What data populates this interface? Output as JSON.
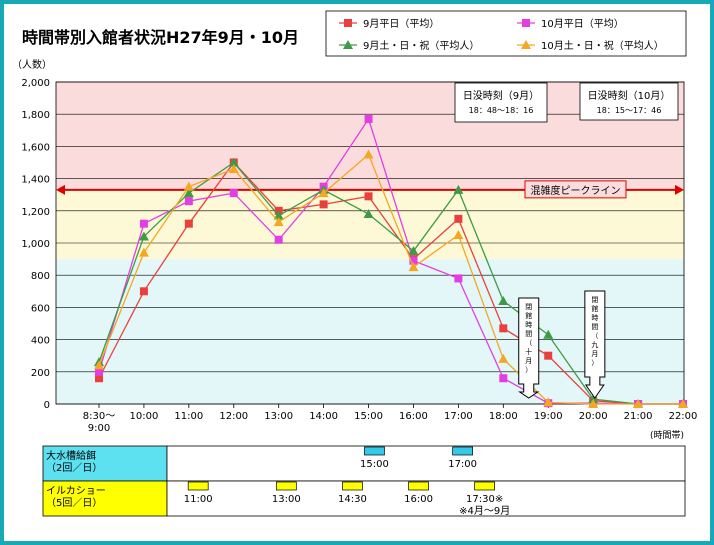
{
  "chart_data": {
    "type": "line",
    "title": "時間帯別入館者状況H27年9月・10月",
    "ylabel": "（人数）",
    "xlabel": "(時間帯)",
    "ylim": [
      0,
      2000
    ],
    "yticks": [
      "0",
      "200",
      "400",
      "600",
      "800",
      "1,000",
      "1,200",
      "1,400",
      "1,600",
      "1,800",
      "2,000"
    ],
    "categories": [
      "8:30～\n9:00",
      "10:00",
      "11:00",
      "12:00",
      "13:00",
      "14:00",
      "15:00",
      "16:00",
      "17:00",
      "18:00",
      "19:00",
      "20:00",
      "21:00",
      "22:00"
    ],
    "series": [
      {
        "name": "9月平日（平均）",
        "color": "#e8413d",
        "marker": "square",
        "values": [
          160,
          700,
          1120,
          1500,
          1200,
          1240,
          1290,
          900,
          1150,
          470,
          300,
          20,
          0,
          0
        ]
      },
      {
        "name": "10月平日（平均）",
        "color": "#e33ee3",
        "marker": "square",
        "values": [
          200,
          1120,
          1260,
          1310,
          1020,
          1350,
          1770,
          890,
          780,
          160,
          5,
          5,
          0,
          0
        ]
      },
      {
        "name": "9月土・日・祝（平均人）",
        "color": "#3f9a45",
        "marker": "triangle",
        "values": [
          260,
          1040,
          1310,
          1500,
          1170,
          1330,
          1180,
          950,
          1330,
          640,
          430,
          30,
          0,
          0
        ]
      },
      {
        "name": "10月土・日・祝（平均人）",
        "color": "#f5a623",
        "marker": "triangle",
        "values": [
          240,
          940,
          1350,
          1460,
          1130,
          1310,
          1550,
          850,
          1050,
          280,
          10,
          0,
          0,
          0
        ]
      }
    ],
    "bands": [
      {
        "from": 1330,
        "to": 2000,
        "color": "#fbdcdc"
      },
      {
        "from": 900,
        "to": 1330,
        "color": "#fdf9d6"
      },
      {
        "from": 0,
        "to": 900,
        "color": "#e3f7f9"
      }
    ],
    "peak_line": {
      "value": 1330,
      "label": "混雑度ピークライン"
    },
    "sunset_sep": {
      "label": "日没時刻（9月）",
      "time": "18：48～18：16"
    },
    "sunset_oct": {
      "label": "日没時刻（10月）",
      "time": "18：15～17：46"
    },
    "closing_oct": {
      "label": "閉館時間（十月）",
      "chars": [
        "閉",
        "館",
        "時",
        "間",
        "（",
        "十",
        "月",
        "）"
      ],
      "at": 18.5
    },
    "closing_sep": {
      "label": "閉館時間（九月）",
      "chars": [
        "閉",
        "館",
        "時",
        "間",
        "（",
        "九",
        "月",
        "）"
      ],
      "at": 20
    }
  },
  "schedule": {
    "rows": [
      {
        "label_lines": [
          "大水槽給餌",
          "（2回／日）"
        ],
        "color": "#33c9ea",
        "header_bg": "#5de0f0",
        "events": [
          {
            "time": "15:00",
            "at": 15
          },
          {
            "time": "17:00",
            "at": 17
          }
        ]
      },
      {
        "label_lines": [
          "イルカショー",
          "（5回／日）"
        ],
        "color": "#ffff00",
        "header_bg": "#ffff00",
        "events": [
          {
            "time": "11:00",
            "at": 11
          },
          {
            "time": "13:00",
            "at": 13
          },
          {
            "time": "14:30",
            "at": 14.5
          },
          {
            "time": "16:00",
            "at": 16
          },
          {
            "time": "17:30※",
            "at": 17.5,
            "note": "※4月～9月"
          }
        ]
      }
    ]
  }
}
